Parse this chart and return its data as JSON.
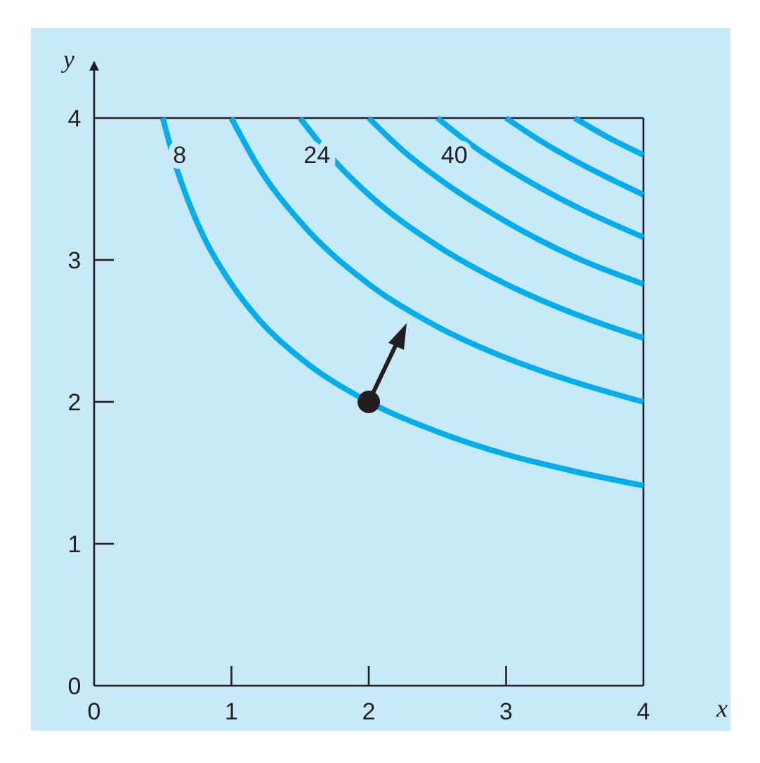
{
  "chart_data": {
    "type": "line",
    "xlabel": "x",
    "ylabel": "y",
    "xlim": [
      0,
      4
    ],
    "ylim": [
      0,
      4
    ],
    "xticks": [
      0,
      1,
      2,
      3,
      4
    ],
    "yticks": [
      0,
      1,
      2,
      3,
      4
    ],
    "grid": false,
    "marker": "none",
    "line_style": "solid",
    "series": [
      {
        "name": "8",
        "color": "#00aeef",
        "x": [
          0.5,
          0.6,
          0.7,
          0.8,
          1,
          1.2,
          1.5,
          2,
          2.5,
          3,
          3.5,
          4
        ],
        "values": [
          4,
          3.65,
          3.38,
          3.16,
          2.83,
          2.58,
          2.31,
          2,
          1.79,
          1.63,
          1.51,
          1.41
        ]
      },
      {
        "color": "#00aeef",
        "x": [
          1,
          1.2,
          1.5,
          2,
          2.5,
          3,
          3.5,
          4
        ],
        "values": [
          4,
          3.65,
          3.27,
          2.83,
          2.53,
          2.31,
          2.14,
          2
        ]
      },
      {
        "name": "24",
        "color": "#00aeef",
        "x": [
          1.5,
          1.75,
          2,
          2.5,
          3,
          3.5,
          4
        ],
        "values": [
          4,
          3.7,
          3.46,
          3.1,
          2.83,
          2.62,
          2.45
        ]
      },
      {
        "color": "#00aeef",
        "x": [
          2,
          2.25,
          2.5,
          3,
          3.5,
          4
        ],
        "values": [
          4,
          3.77,
          3.58,
          3.27,
          3.02,
          2.83
        ]
      },
      {
        "name": "40",
        "color": "#00aeef",
        "x": [
          2.5,
          2.75,
          3,
          3.5,
          4
        ],
        "values": [
          4,
          3.81,
          3.65,
          3.38,
          3.16
        ]
      },
      {
        "color": "#00aeef",
        "x": [
          3,
          3.25,
          3.5,
          4
        ],
        "values": [
          4,
          3.84,
          3.7,
          3.46
        ]
      },
      {
        "color": "#00aeef",
        "x": [
          3.5,
          3.75,
          4
        ],
        "values": [
          4,
          3.86,
          3.74
        ]
      },
      {
        "type": "scatter",
        "color": "#231f20",
        "marker": "circle",
        "x": [
          2
        ],
        "values": [
          2
        ]
      }
    ]
  }
}
